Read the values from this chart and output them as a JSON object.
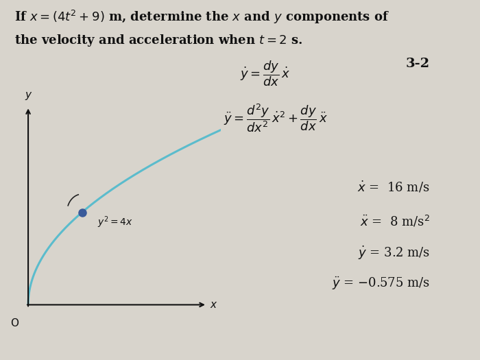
{
  "background_color": "#d8d4cc",
  "title_line1": "If $x = (4t^2 + 9)$ m, determine the $x$ and $y$ components of",
  "title_line2": "the velocity and acceleration when $t = 2$ s.",
  "title_fontsize": 13.0,
  "curve_color": "#5bbccc",
  "curve_label": "$y^2 = 4x$",
  "dot_color": "#3a5a9a",
  "axis_color": "#111111",
  "origin_label": "O",
  "x_label": "x",
  "y_label": "y",
  "formula1_top": "$dy$",
  "formula1_mid": "$\\dot{y} = \\dfrac{dy}{dx}\\,\\dot{x}$",
  "formula2_mid": "$\\ddot{y} = \\dfrac{d^2y}{dx^2}\\,\\dot{x}^2 + \\dfrac{dy}{dx}\\,\\ddot{x}$",
  "formula_label": "3-2",
  "result1": "$\\dot{x}$ =  16 m/s",
  "result2": "$\\ddot{x}$ =  8 m/s$^2$",
  "result3": "$\\dot{y}$ = 3.2 m/s",
  "result4": "$\\ddot{y}$ =0.575 m/s"
}
